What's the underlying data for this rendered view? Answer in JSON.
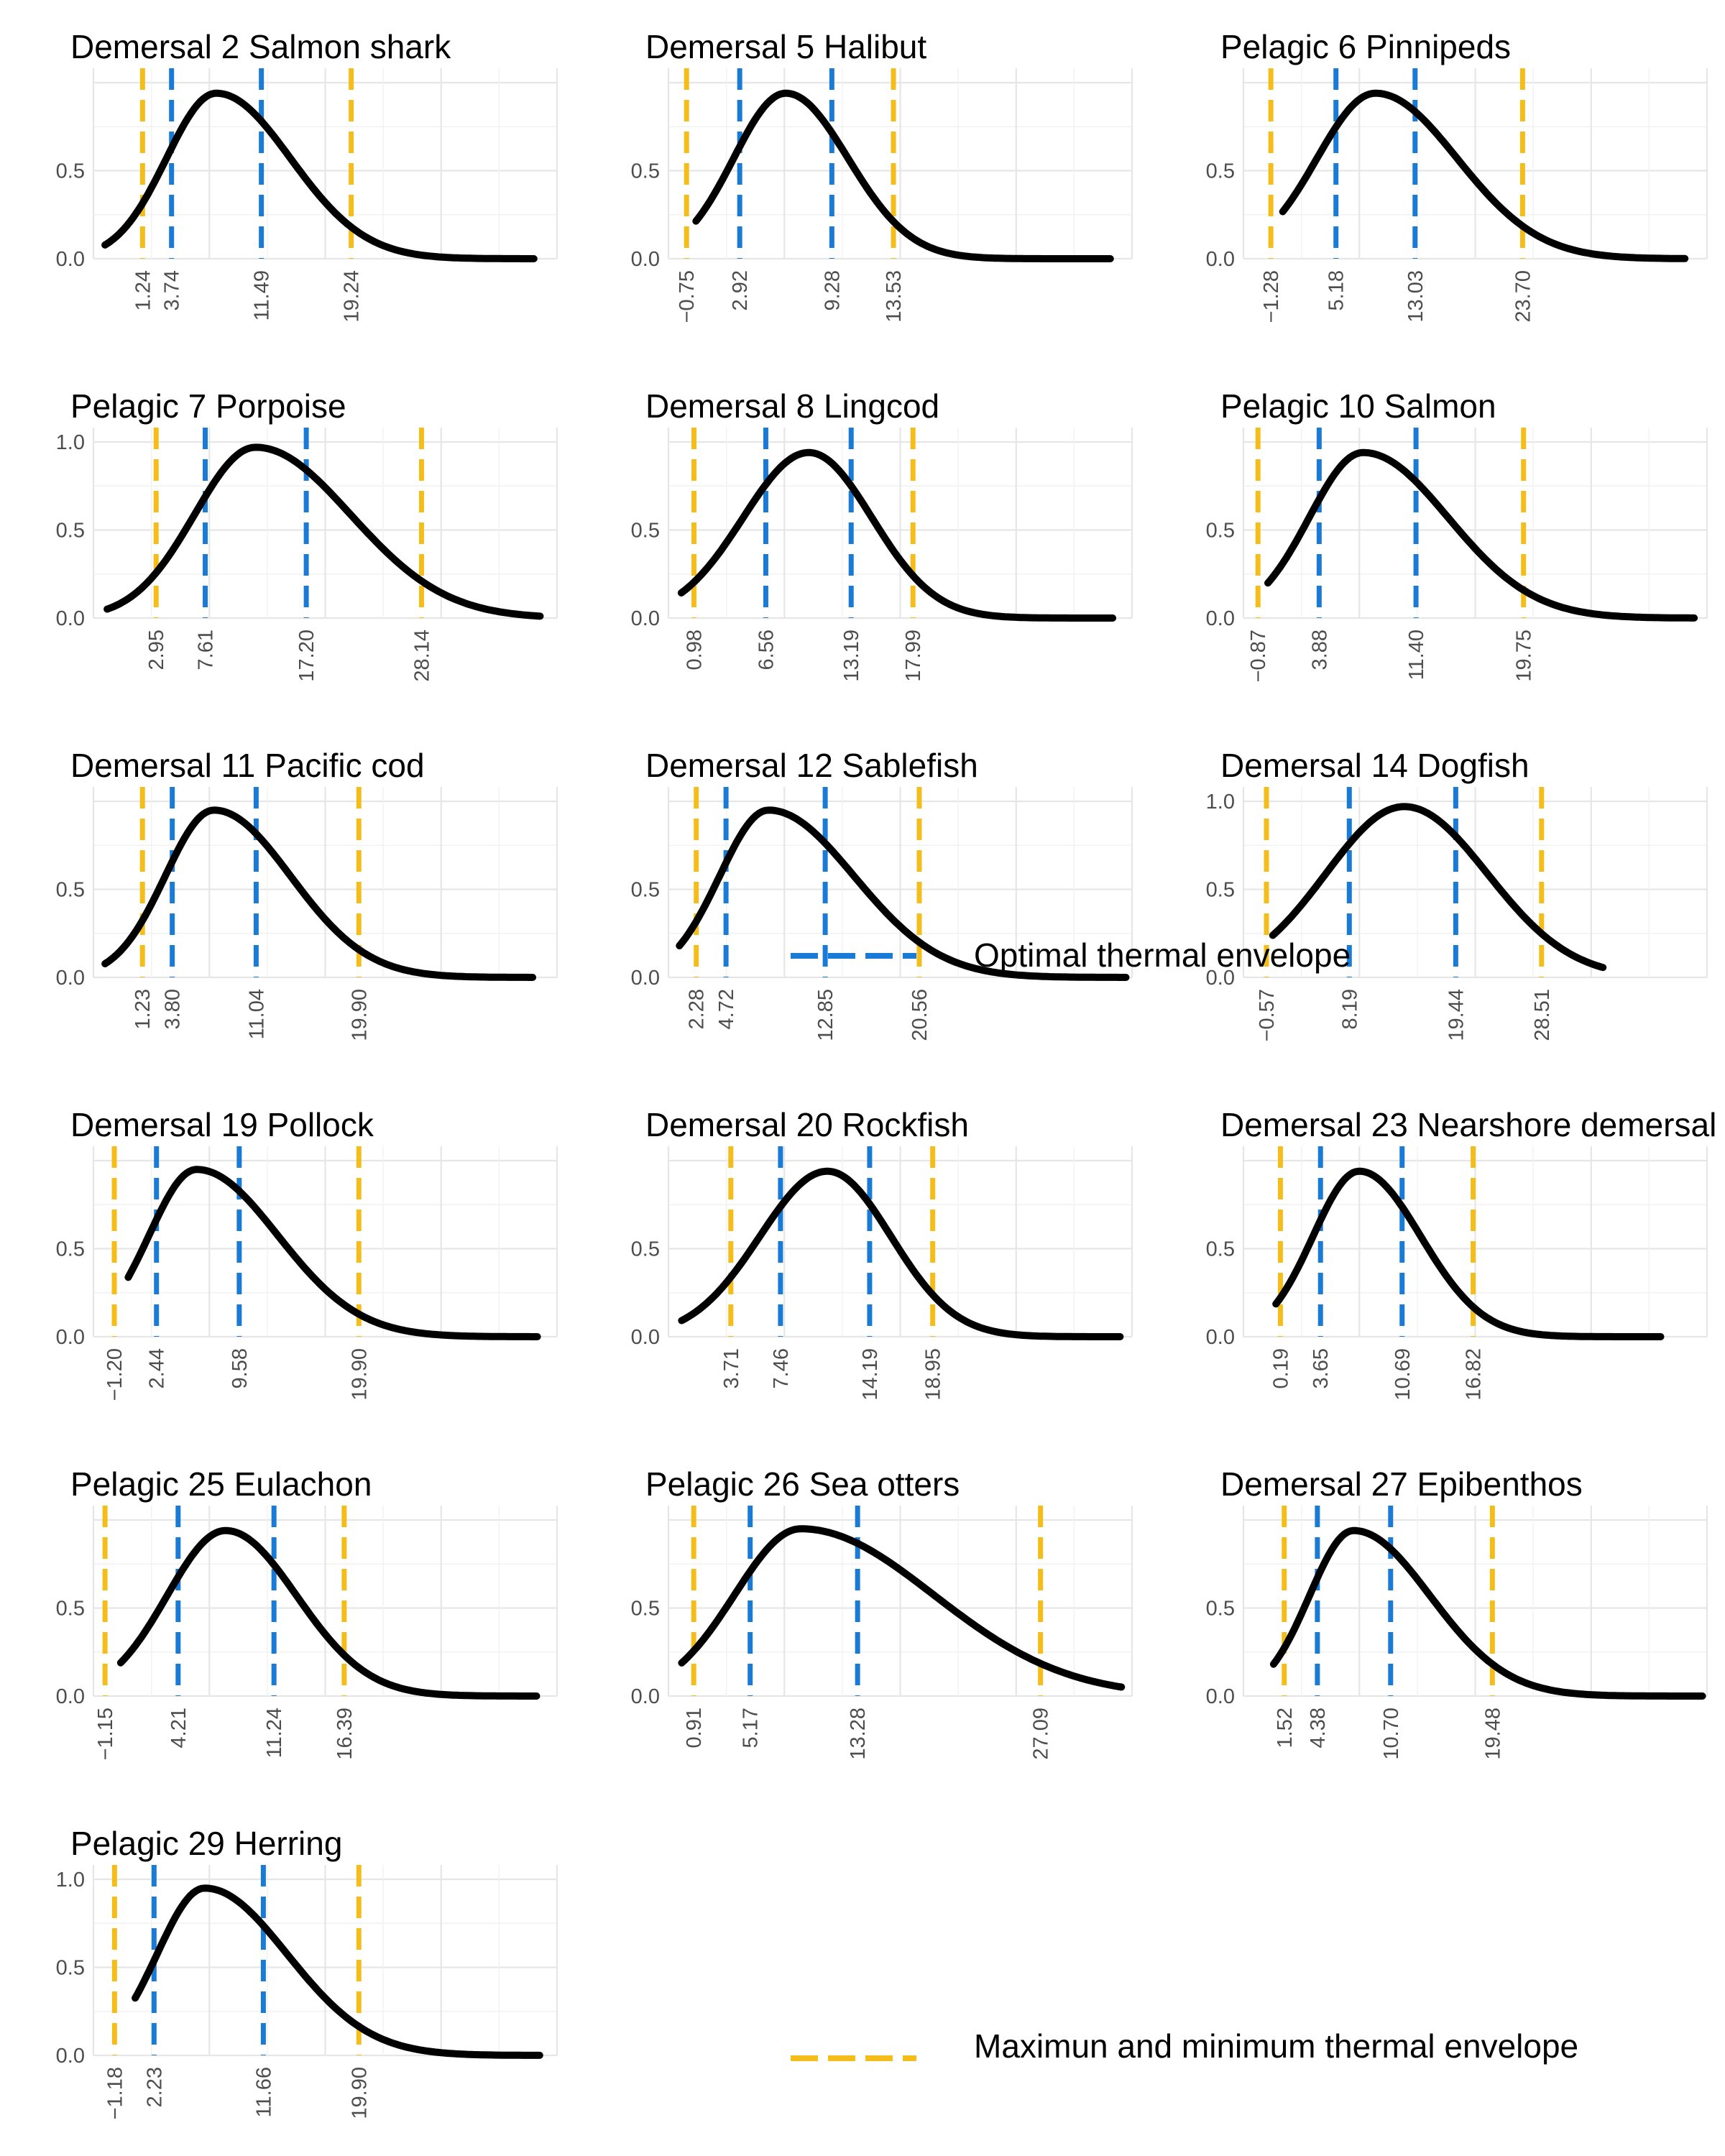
{
  "colors": {
    "optimal": "#1a7bd6",
    "envelope": "#f5bd1a",
    "curve": "#000000",
    "grid_major": "#e6e6e6",
    "grid_minor": "#f2f2f2",
    "tick_text": "#4d4d4d"
  },
  "chart_data": [
    {
      "type": "line",
      "title": "Demersal 2 Salmon shark",
      "yticks": [
        "0.0",
        "0.5"
      ],
      "ylim": [
        0,
        1.0
      ],
      "xlim": [
        -3,
        37
      ],
      "min": 1.24,
      "opt_low": 3.74,
      "opt_high": 11.49,
      "max": 19.24,
      "min_label": "1.24",
      "opt_low_label": "3.74",
      "opt_high_label": "11.49",
      "max_label": "19.24",
      "peak_x": 7.6,
      "peak_y": 0.94,
      "sigma_left": 4.3,
      "sigma_right": 6.4,
      "x_start": -2.0,
      "x_end": 35.0
    },
    {
      "type": "line",
      "title": "Demersal 5 Halibut",
      "yticks": [
        "0.0",
        "0.5"
      ],
      "ylim": [
        0,
        1.0
      ],
      "xlim": [
        -2,
        30
      ],
      "min": -0.75,
      "opt_low": 2.92,
      "opt_high": 9.28,
      "max": 13.53,
      "min_label": "−0.75",
      "opt_low_label": "2.92",
      "opt_high_label": "9.28",
      "max_label": "13.53",
      "peak_x": 6.1,
      "peak_y": 0.94,
      "sigma_left": 3.6,
      "sigma_right": 4.3,
      "x_start": -0.1,
      "x_end": 28.5
    },
    {
      "type": "line",
      "title": "Pelagic 6 Pinnipeds",
      "yticks": [
        "0.0",
        "0.5"
      ],
      "ylim": [
        0,
        1.0
      ],
      "xlim": [
        -4,
        42
      ],
      "min": -1.28,
      "opt_low": 5.18,
      "opt_high": 13.03,
      "max": 23.7,
      "min_label": "−1.28",
      "opt_low_label": "5.18",
      "opt_high_label": "13.03",
      "max_label": "23.70",
      "peak_x": 9.1,
      "peak_y": 0.94,
      "sigma_left": 5.8,
      "sigma_right": 8.1,
      "x_start": -0.1,
      "x_end": 39.8
    },
    {
      "type": "line",
      "title": "Pelagic 7 Porpoise",
      "yticks": [
        "0.0",
        "0.5",
        "1.0"
      ],
      "ylim": [
        0,
        1.0
      ],
      "xlim": [
        -3,
        41
      ],
      "min": 2.95,
      "opt_low": 7.61,
      "opt_high": 17.2,
      "max": 28.14,
      "min_label": "2.95",
      "opt_low_label": "7.61",
      "opt_high_label": "17.20",
      "max_label": "28.14",
      "peak_x": 12.4,
      "peak_y": 0.97,
      "sigma_left": 5.8,
      "sigma_right": 9.0,
      "x_start": -1.7,
      "x_end": 39.4
    },
    {
      "type": "line",
      "title": "Demersal 8 Lingcod",
      "yticks": [
        "0.0",
        "0.5"
      ],
      "ylim": [
        0,
        1.0
      ],
      "xlim": [
        -1,
        35
      ],
      "min": 0.98,
      "opt_low": 6.56,
      "opt_high": 13.19,
      "max": 17.99,
      "min_label": "0.98",
      "opt_low_label": "6.56",
      "opt_high_label": "13.19",
      "max_label": "17.99",
      "peak_x": 9.9,
      "peak_y": 0.94,
      "sigma_left": 5.1,
      "sigma_right": 4.9,
      "x_start": 0.0,
      "x_end": 33.5
    },
    {
      "type": "line",
      "title": "Pelagic 10 Salmon",
      "yticks": [
        "0.0",
        "0.5"
      ],
      "ylim": [
        0,
        1.0
      ],
      "xlim": [
        -2,
        34
      ],
      "min": -0.87,
      "opt_low": 3.88,
      "opt_high": 11.4,
      "max": 19.75,
      "min_label": "−0.87",
      "opt_low_label": "3.88",
      "opt_high_label": "11.40",
      "max_label": "19.75",
      "peak_x": 7.3,
      "peak_y": 0.94,
      "sigma_left": 4.2,
      "sigma_right": 6.6,
      "x_start": -0.1,
      "x_end": 33.0
    },
    {
      "type": "line",
      "title": "Demersal 11 Pacific cod",
      "yticks": [
        "0.0",
        "0.5"
      ],
      "ylim": [
        0,
        1.0
      ],
      "xlim": [
        -3,
        37
      ],
      "min": 1.23,
      "opt_low": 3.8,
      "opt_high": 11.04,
      "max": 19.9,
      "min_label": "1.23",
      "opt_low_label": "3.80",
      "opt_high_label": "11.04",
      "max_label": "19.90",
      "peak_x": 7.4,
      "peak_y": 0.95,
      "sigma_left": 4.2,
      "sigma_right": 6.6,
      "x_start": -2.0,
      "x_end": 34.9
    },
    {
      "type": "line",
      "title": "Demersal 12 Sablefish",
      "yticks": [
        "0.0",
        "0.5"
      ],
      "ylim": [
        0,
        1.0
      ],
      "xlim": [
        0,
        38
      ],
      "min": 2.28,
      "opt_low": 4.72,
      "opt_high": 12.85,
      "max": 20.56,
      "min_label": "2.28",
      "opt_low_label": "4.72",
      "opt_high_label": "12.85",
      "max_label": "20.56",
      "peak_x": 8.2,
      "peak_y": 0.95,
      "sigma_left": 4.0,
      "sigma_right": 7.0,
      "x_start": 0.9,
      "x_end": 37.5
    },
    {
      "type": "line",
      "title": "Demersal 14 Dogfish",
      "yticks": [
        "0.0",
        "0.5",
        "1.0"
      ],
      "ylim": [
        0,
        1.0
      ],
      "xlim": [
        -3,
        46
      ],
      "min": -0.57,
      "opt_low": 8.19,
      "opt_high": 19.44,
      "max": 28.51,
      "min_label": "−0.57",
      "opt_low_label": "8.19",
      "opt_high_label": "19.44",
      "max_label": "28.51",
      "peak_x": 14.0,
      "peak_y": 0.97,
      "sigma_left": 8.3,
      "sigma_right": 8.8,
      "x_start": 0.1,
      "x_end": 35.0
    },
    {
      "type": "line",
      "title": "Demersal 19 Pollock",
      "yticks": [
        "0.0",
        "0.5"
      ],
      "ylim": [
        0,
        1.0
      ],
      "xlim": [
        -3,
        37
      ],
      "min": -1.2,
      "opt_low": 2.44,
      "opt_high": 9.58,
      "max": 19.9,
      "min_label": "−1.20",
      "opt_low_label": "2.44",
      "opt_high_label": "9.58",
      "max_label": "19.90",
      "peak_x": 5.9,
      "peak_y": 0.95,
      "sigma_left": 4.1,
      "sigma_right": 7.0,
      "x_start": 0.0,
      "x_end": 35.3
    },
    {
      "type": "line",
      "title": "Demersal 20 Rockfish",
      "yticks": [
        "0.0",
        "0.5"
      ],
      "ylim": [
        0,
        1.0
      ],
      "xlim": [
        -1,
        34
      ],
      "min": 3.71,
      "opt_low": 7.46,
      "opt_high": 14.19,
      "max": 18.95,
      "min_label": "3.71",
      "opt_low_label": "7.46",
      "opt_high_label": "14.19",
      "max_label": "18.95",
      "peak_x": 11.0,
      "peak_y": 0.94,
      "sigma_left": 5.1,
      "sigma_right": 4.8,
      "x_start": 0.0,
      "x_end": 33.1
    },
    {
      "type": "line",
      "title": "Demersal 23 Nearshore demersal",
      "yticks": [
        "0.0",
        "0.5"
      ],
      "ylim": [
        0,
        1.0
      ],
      "xlim": [
        -3,
        37
      ],
      "min": 0.19,
      "opt_low": 3.65,
      "opt_high": 10.69,
      "max": 16.82,
      "min_label": "0.19",
      "opt_low_label": "3.65",
      "opt_high_label": "10.69",
      "max_label": "16.82",
      "peak_x": 7.0,
      "peak_y": 0.94,
      "sigma_left": 4.0,
      "sigma_right": 5.3,
      "x_start": -0.2,
      "x_end": 33.0
    },
    {
      "type": "line",
      "title": "Pelagic 25 Eulachon",
      "yticks": [
        "0.0",
        "0.5"
      ],
      "ylim": [
        0,
        1.0
      ],
      "xlim": [
        -2,
        32
      ],
      "min": -1.15,
      "opt_low": 4.21,
      "opt_high": 11.24,
      "max": 16.39,
      "min_label": "−1.15",
      "opt_low_label": "4.21",
      "opt_high_label": "11.24",
      "max_label": "16.39",
      "peak_x": 7.7,
      "peak_y": 0.94,
      "sigma_left": 4.3,
      "sigma_right": 5.2,
      "x_start": 0.0,
      "x_end": 30.5
    },
    {
      "type": "line",
      "title": "Pelagic 26 Sea otters",
      "yticks": [
        "0.0",
        "0.5"
      ],
      "ylim": [
        0,
        1.0
      ],
      "xlim": [
        -1,
        34
      ],
      "min": 0.91,
      "opt_low": 5.17,
      "opt_high": 13.28,
      "max": 27.09,
      "min_label": "0.91",
      "opt_low_label": "5.17",
      "opt_high_label": "13.28",
      "max_label": "27.09",
      "peak_x": 9.0,
      "peak_y": 0.95,
      "sigma_left": 5.0,
      "sigma_right": 10.0,
      "x_start": 0.0,
      "x_end": 33.2
    },
    {
      "type": "line",
      "title": "Demersal 27 Epibenthos",
      "yticks": [
        "0.0",
        "0.5"
      ],
      "ylim": [
        0,
        1.0
      ],
      "xlim": [
        -2,
        38
      ],
      "min": 1.52,
      "opt_low": 4.38,
      "opt_high": 10.7,
      "max": 19.48,
      "min_label": "1.52",
      "opt_low_label": "4.38",
      "opt_high_label": "10.70",
      "max_label": "19.48",
      "peak_x": 7.5,
      "peak_y": 0.94,
      "sigma_left": 3.8,
      "sigma_right": 6.6,
      "x_start": 0.6,
      "x_end": 37.6
    },
    {
      "type": "line",
      "title": "Pelagic 29 Herring",
      "yticks": [
        "0.0",
        "0.5",
        "1.0"
      ],
      "ylim": [
        0,
        1.0
      ],
      "xlim": [
        -3,
        37
      ],
      "min": -1.18,
      "opt_low": 2.23,
      "opt_high": 11.66,
      "max": 19.9,
      "min_label": "−1.18",
      "opt_low_label": "2.23",
      "opt_high_label": "11.66",
      "max_label": "19.90",
      "peak_x": 6.6,
      "peak_y": 0.95,
      "sigma_left": 4.1,
      "sigma_right": 7.1,
      "x_start": 0.6,
      "x_end": 35.5
    }
  ],
  "legend": {
    "optimal_label": "Optimal thermal envelope",
    "envelope_label": "Maximun and minimum thermal envelope"
  }
}
